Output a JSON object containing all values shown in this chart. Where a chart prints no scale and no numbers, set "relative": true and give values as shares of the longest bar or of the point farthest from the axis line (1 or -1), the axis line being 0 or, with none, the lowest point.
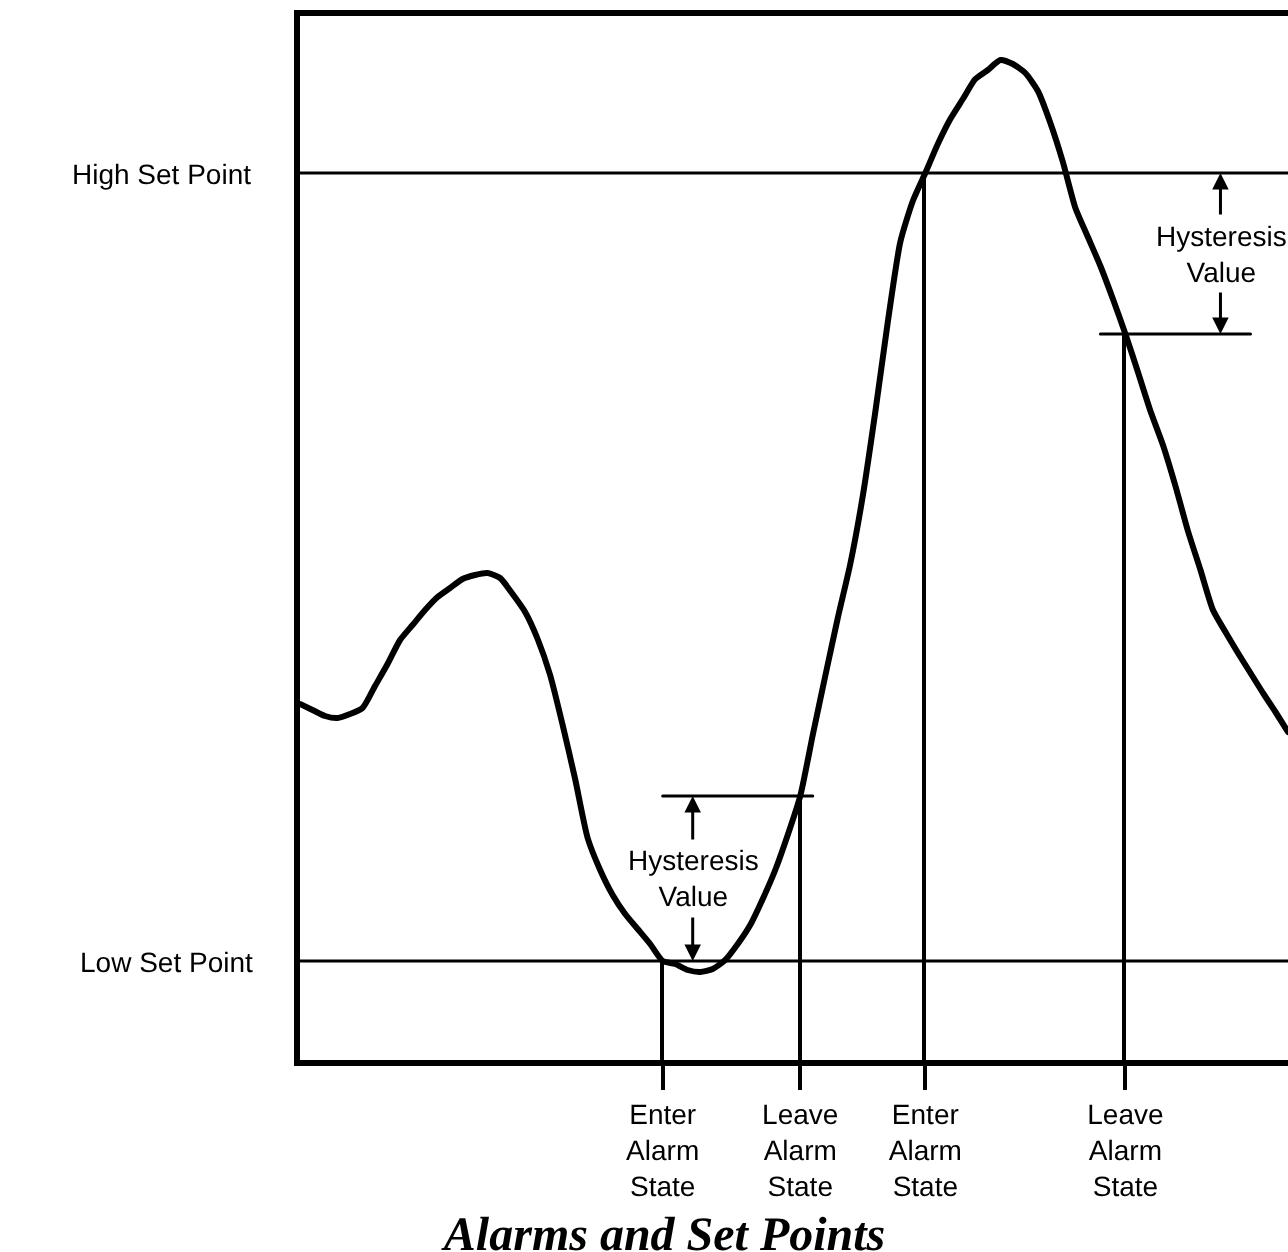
{
  "chart_data": {
    "type": "line",
    "relative": true,
    "title": "Alarms and Set Points",
    "marker": "none",
    "line_style": "solid",
    "tick_labels": "x",
    "categories": [
      null,
      null,
      null,
      null,
      null,
      null,
      null,
      null,
      null,
      null,
      null,
      null,
      null,
      null,
      null,
      null,
      null,
      null,
      null,
      null,
      null,
      null,
      null,
      null,
      null,
      null,
      null,
      null,
      null,
      "Enter\nAlarm\nState",
      null,
      null,
      null,
      null,
      null,
      null,
      null,
      null,
      null,
      null,
      "Leave\nAlarm\nState",
      null,
      null,
      null,
      null,
      null,
      null,
      null,
      null,
      null,
      "Enter\nAlarm\nState",
      null,
      null,
      null,
      null,
      null,
      null,
      null,
      null,
      null,
      null,
      null,
      null,
      null,
      null,
      null,
      "Leave\nAlarm\nState",
      null,
      null,
      null,
      null,
      null,
      null,
      null,
      null,
      null,
      null,
      null,
      null,
      null
    ],
    "series": [
      {
        "color": "#000000",
        "values": [
          0.356,
          0.35,
          0.344,
          0.342,
          0.346,
          0.352,
          0.374,
          0.396,
          0.42,
          0.435,
          0.45,
          0.463,
          0.472,
          0.481,
          0.485,
          0.487,
          0.482,
          0.466,
          0.448,
          0.421,
          0.385,
          0.335,
          0.281,
          0.222,
          0.19,
          0.165,
          0.146,
          0.131,
          0.116,
          0.099,
          0.096,
          0.09,
          0.088,
          0.091,
          0.1,
          0.116,
          0.135,
          0.161,
          0.19,
          0.225,
          0.264,
          0.325,
          0.384,
          0.442,
          0.496,
          0.564,
          0.648,
          0.738,
          0.818,
          0.859,
          0.887,
          0.916,
          0.941,
          0.961,
          0.981,
          0.99,
          1.0,
          0.996,
          0.987,
          0.969,
          0.937,
          0.898,
          0.852,
          0.823,
          0.794,
          0.761,
          0.726,
          0.688,
          0.649,
          0.615,
          0.574,
          0.529,
          0.49,
          0.45,
          0.428,
          0.407,
          0.387,
          0.367,
          0.348,
          0.328
        ]
      },
      {
        "type": "bar",
        "color": "#000000",
        "values": [
          null,
          null,
          null,
          null,
          null,
          null,
          null,
          null,
          null,
          null,
          null,
          null,
          null,
          null,
          null,
          null,
          null,
          null,
          null,
          null,
          null,
          null,
          null,
          null,
          null,
          null,
          null,
          null,
          null,
          0.099,
          null,
          null,
          null,
          null,
          null,
          null,
          null,
          null,
          null,
          null,
          0.264,
          null,
          null,
          null,
          null,
          null,
          null,
          null,
          null,
          null,
          0.887,
          null,
          null,
          null,
          null,
          null,
          null,
          null,
          null,
          null,
          null,
          null,
          null,
          null,
          null,
          null,
          0.726,
          null,
          null,
          null,
          null,
          null,
          null,
          null,
          null,
          null,
          null,
          null,
          null,
          null
        ]
      },
      {
        "color": "#000000",
        "values": [
          null,
          null,
          null,
          null,
          null,
          null,
          null,
          null,
          null,
          null,
          null,
          null,
          null,
          null,
          null,
          null,
          null,
          null,
          null,
          null,
          null,
          null,
          null,
          null,
          null,
          null,
          null,
          null,
          null,
          0.264,
          0.264,
          0.264,
          0.264,
          0.264,
          0.264,
          0.264,
          0.264,
          0.264,
          0.264,
          0.264,
          0.264,
          0.264,
          null,
          null,
          null,
          null,
          null,
          null,
          null,
          null,
          null,
          null,
          null,
          null,
          null,
          null,
          null,
          null,
          null,
          null,
          null,
          null,
          null,
          null,
          null,
          null,
          null,
          null,
          null,
          null,
          null,
          null,
          null,
          null,
          null,
          null,
          null,
          null,
          null,
          null
        ]
      },
      {
        "color": "#000000",
        "values": [
          null,
          null,
          null,
          null,
          null,
          null,
          null,
          null,
          null,
          null,
          null,
          null,
          null,
          null,
          null,
          null,
          null,
          null,
          null,
          null,
          null,
          null,
          null,
          null,
          null,
          null,
          null,
          null,
          null,
          null,
          null,
          null,
          null,
          null,
          null,
          null,
          null,
          null,
          null,
          null,
          null,
          null,
          null,
          null,
          null,
          null,
          null,
          null,
          null,
          null,
          null,
          null,
          null,
          null,
          null,
          null,
          null,
          null,
          null,
          null,
          null,
          null,
          null,
          null,
          0.726,
          0.726,
          0.726,
          0.726,
          0.726,
          0.726,
          0.726,
          0.726,
          0.726,
          0.726,
          0.726,
          0.726,
          0.726,
          null,
          null,
          null
        ]
      }
    ],
    "ref_lines": [
      {
        "axis": "y",
        "value": 0.887,
        "label": "High Set Point",
        "color": "#000000"
      },
      {
        "axis": "y",
        "value": 0.099,
        "label": "Low Set Point",
        "color": "#000000"
      }
    ],
    "annotations": [
      "Hysteresis\nValue",
      "Hysteresis\nValue"
    ]
  }
}
